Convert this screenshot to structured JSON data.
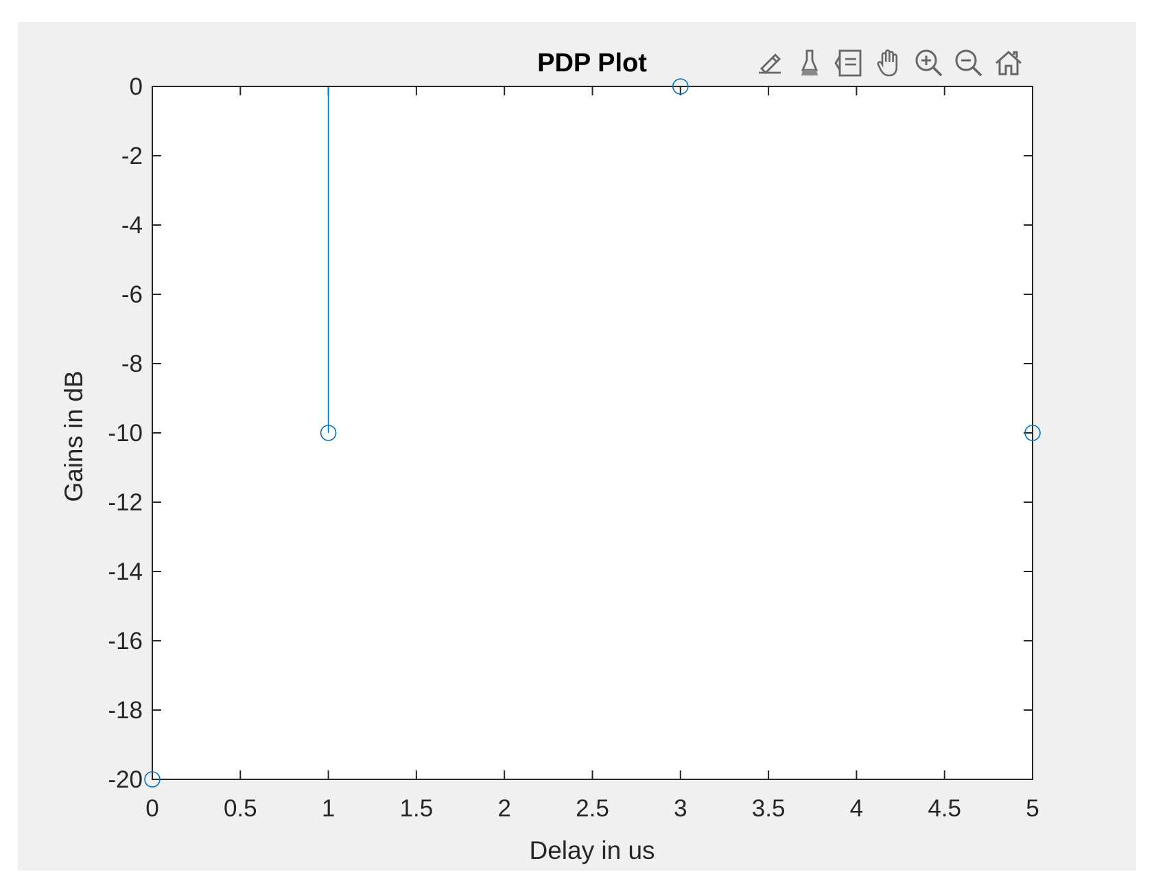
{
  "toolbar": {
    "icons": [
      "edit-brush-icon",
      "paint-brush-icon",
      "legend-icon",
      "pan-hand-icon",
      "zoom-in-icon",
      "zoom-out-icon",
      "home-icon"
    ]
  },
  "chart_data": {
    "type": "stem",
    "title": "PDP Plot",
    "xlabel": "Delay in us",
    "ylabel": "Gains in dB",
    "x": [
      0,
      1,
      3,
      5
    ],
    "y": [
      -20,
      -10,
      0,
      -10
    ],
    "baseline": 0,
    "xlim": [
      0,
      5
    ],
    "ylim": [
      -20,
      0
    ],
    "xticks": [
      0,
      0.5,
      1,
      1.5,
      2,
      2.5,
      3,
      3.5,
      4,
      4.5,
      5
    ],
    "xtick_labels": [
      "0",
      "0.5",
      "1",
      "1.5",
      "2",
      "2.5",
      "3",
      "3.5",
      "4",
      "4.5",
      "5"
    ],
    "yticks": [
      0,
      -2,
      -4,
      -6,
      -8,
      -10,
      -12,
      -14,
      -16,
      -18,
      -20
    ],
    "ytick_labels": [
      "0",
      "-2",
      "-4",
      "-6",
      "-8",
      "-10",
      "-12",
      "-14",
      "-16",
      "-18",
      "-20"
    ],
    "grid": false,
    "colors": {
      "series": "#0072bd",
      "axes": "#262626",
      "figure_bg": "#f0f0f0",
      "axes_bg": "#ffffff"
    }
  }
}
